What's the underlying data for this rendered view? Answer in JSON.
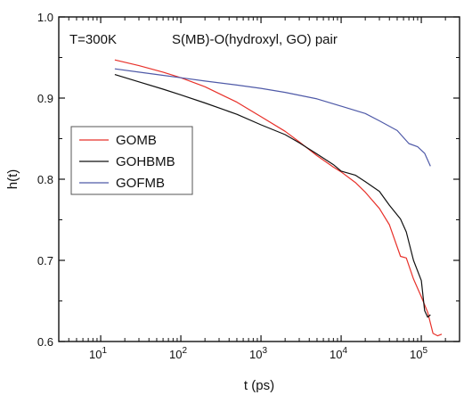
{
  "chart_data": {
    "type": "line",
    "xlabel": "t (ps)",
    "ylabel": "h(t)",
    "xscale": "log",
    "xlim": [
      3,
      300000
    ],
    "ylim": [
      0.6,
      1.0
    ],
    "x_ticks": [
      {
        "value": 10,
        "base": "10",
        "exp": "1"
      },
      {
        "value": 100,
        "base": "10",
        "exp": "2"
      },
      {
        "value": 1000,
        "base": "10",
        "exp": "3"
      },
      {
        "value": 10000,
        "base": "10",
        "exp": "4"
      },
      {
        "value": 100000,
        "base": "10",
        "exp": "5"
      }
    ],
    "y_ticks": [
      "0.6",
      "0.7",
      "0.8",
      "0.9",
      "1.0"
    ],
    "annotations": {
      "temperature": "T=300K",
      "pair": "S(MB)-O(hydroxyl, GO) pair"
    },
    "legend": {
      "placement": "left-middle"
    },
    "series": [
      {
        "name": "GOMB",
        "color": "#e8312a",
        "points": [
          [
            15,
            0.947
          ],
          [
            30,
            0.94
          ],
          [
            60,
            0.932
          ],
          [
            100,
            0.925
          ],
          [
            200,
            0.914
          ],
          [
            500,
            0.895
          ],
          [
            1000,
            0.877
          ],
          [
            2000,
            0.859
          ],
          [
            3000,
            0.846
          ],
          [
            5000,
            0.829
          ],
          [
            8000,
            0.815
          ],
          [
            10000,
            0.809
          ],
          [
            15000,
            0.796
          ],
          [
            20000,
            0.784
          ],
          [
            30000,
            0.764
          ],
          [
            40000,
            0.744
          ],
          [
            55000,
            0.705
          ],
          [
            65000,
            0.703
          ],
          [
            80000,
            0.677
          ],
          [
            100000,
            0.655
          ],
          [
            120000,
            0.636
          ],
          [
            140000,
            0.61
          ],
          [
            160000,
            0.607
          ],
          [
            180000,
            0.609
          ]
        ]
      },
      {
        "name": "GOHBMB",
        "color": "#111111",
        "points": [
          [
            15,
            0.929
          ],
          [
            30,
            0.92
          ],
          [
            60,
            0.911
          ],
          [
            100,
            0.904
          ],
          [
            200,
            0.894
          ],
          [
            500,
            0.88
          ],
          [
            1000,
            0.867
          ],
          [
            2000,
            0.855
          ],
          [
            3000,
            0.845
          ],
          [
            5000,
            0.831
          ],
          [
            8000,
            0.818
          ],
          [
            10000,
            0.81
          ],
          [
            15000,
            0.805
          ],
          [
            20000,
            0.797
          ],
          [
            30000,
            0.785
          ],
          [
            40000,
            0.768
          ],
          [
            55000,
            0.751
          ],
          [
            65000,
            0.735
          ],
          [
            80000,
            0.7
          ],
          [
            100000,
            0.675
          ],
          [
            110000,
            0.638
          ],
          [
            120000,
            0.63
          ],
          [
            130000,
            0.633
          ]
        ]
      },
      {
        "name": "GOFMB",
        "color": "#4f5aa8",
        "points": [
          [
            15,
            0.936
          ],
          [
            30,
            0.932
          ],
          [
            60,
            0.928
          ],
          [
            100,
            0.925
          ],
          [
            200,
            0.921
          ],
          [
            500,
            0.916
          ],
          [
            1000,
            0.912
          ],
          [
            2000,
            0.907
          ],
          [
            5000,
            0.899
          ],
          [
            10000,
            0.89
          ],
          [
            20000,
            0.881
          ],
          [
            30000,
            0.872
          ],
          [
            50000,
            0.86
          ],
          [
            70000,
            0.844
          ],
          [
            90000,
            0.84
          ],
          [
            110000,
            0.832
          ],
          [
            130000,
            0.816
          ]
        ]
      }
    ]
  }
}
